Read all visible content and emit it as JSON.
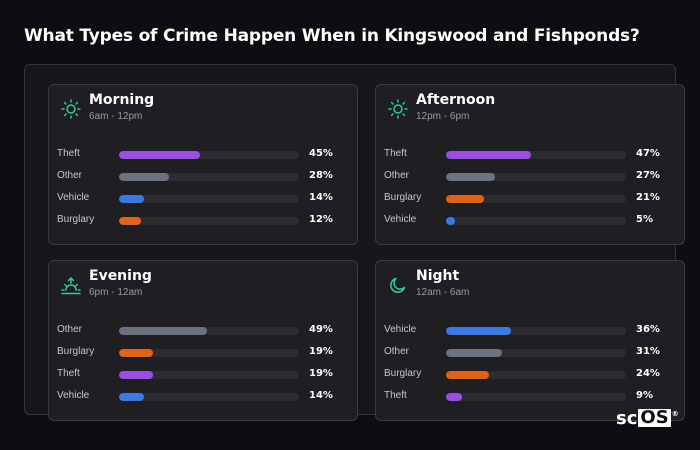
{
  "title": "What Types of Crime Happen When in Kingswood and Fishponds?",
  "logo_text": "scOS",
  "colors": {
    "Theft": "#9b4fe0",
    "Other": "#6b7280",
    "Vehicle": "#3b7ae0",
    "Burglary": "#e0621b",
    "icon": "#2ec9a3",
    "track": "#2c2c32"
  },
  "chart_data": [
    {
      "type": "bar",
      "panel": "Morning",
      "subtitle": "6am - 12pm",
      "icon": "sun-icon",
      "categories": [
        "Theft",
        "Other",
        "Vehicle",
        "Burglary"
      ],
      "values": [
        45,
        28,
        14,
        12
      ],
      "value_labels": [
        "45%",
        "28%",
        "14%",
        "12%"
      ],
      "xlim": [
        0,
        100
      ]
    },
    {
      "type": "bar",
      "panel": "Afternoon",
      "subtitle": "12pm - 6pm",
      "icon": "sun-icon",
      "categories": [
        "Theft",
        "Other",
        "Burglary",
        "Vehicle"
      ],
      "values": [
        47,
        27,
        21,
        5
      ],
      "value_labels": [
        "47%",
        "27%",
        "21%",
        "5%"
      ],
      "xlim": [
        0,
        100
      ]
    },
    {
      "type": "bar",
      "panel": "Evening",
      "subtitle": "6pm - 12am",
      "icon": "sunset-icon",
      "categories": [
        "Other",
        "Burglary",
        "Theft",
        "Vehicle"
      ],
      "values": [
        49,
        19,
        19,
        14
      ],
      "value_labels": [
        "49%",
        "19%",
        "19%",
        "14%"
      ],
      "xlim": [
        0,
        100
      ]
    },
    {
      "type": "bar",
      "panel": "Night",
      "subtitle": "12am - 6am",
      "icon": "moon-icon",
      "categories": [
        "Vehicle",
        "Other",
        "Burglary",
        "Theft"
      ],
      "values": [
        36,
        31,
        24,
        9
      ],
      "value_labels": [
        "36%",
        "31%",
        "24%",
        "9%"
      ],
      "xlim": [
        0,
        100
      ]
    }
  ]
}
